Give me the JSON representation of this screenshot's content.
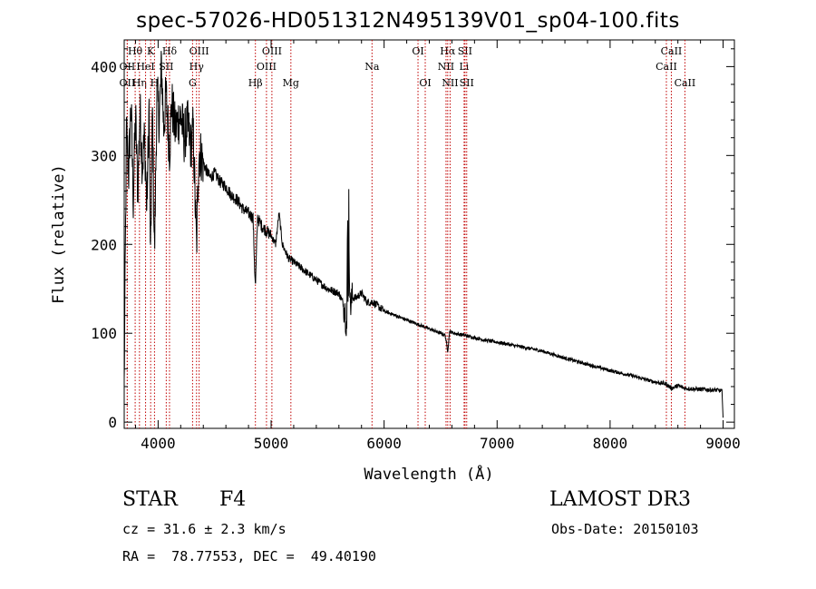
{
  "title": "spec-57026-HD051312N495139V01_sp04-100.fits",
  "chart_data": {
    "type": "line",
    "title": "spec-57026-HD051312N495139V01_sp04-100.fits",
    "xlabel": "Wavelength (Å)",
    "ylabel": "Flux (relative)",
    "xlim": [
      3700,
      9100
    ],
    "ylim": [
      -7,
      430
    ],
    "xticks": [
      4000,
      5000,
      6000,
      7000,
      8000,
      9000
    ],
    "yticks": [
      0,
      100,
      200,
      300,
      400
    ],
    "series": [
      {
        "name": "spectrum",
        "x": [
          3700,
          3720,
          3740,
          3760,
          3780,
          3800,
          3820,
          3840,
          3860,
          3880,
          3900,
          3920,
          3933,
          3950,
          3968,
          3990,
          4010,
          4030,
          4050,
          4070,
          4101,
          4120,
          4150,
          4180,
          4200,
          4230,
          4260,
          4290,
          4310,
          4340,
          4360,
          4380,
          4420,
          4460,
          4500,
          4550,
          4600,
          4650,
          4700,
          4750,
          4800,
          4840,
          4861,
          4880,
          4920,
          4960,
          5000,
          5040,
          5070,
          5100,
          5150,
          5200,
          5300,
          5400,
          5500,
          5600,
          5650,
          5670,
          5680,
          5700,
          5720,
          5750,
          5800,
          5850,
          5900,
          5950,
          6000,
          6100,
          6200,
          6300,
          6400,
          6500,
          6540,
          6563,
          6580,
          6620,
          6700,
          6800,
          6900,
          7000,
          7200,
          7400,
          7600,
          7800,
          8000,
          8200,
          8400,
          8498,
          8542,
          8600,
          8662,
          8800,
          8950,
          8990,
          9000
        ],
        "values": [
          40,
          330,
          280,
          360,
          250,
          345,
          260,
          350,
          290,
          320,
          240,
          355,
          175,
          350,
          190,
          370,
          340,
          400,
          330,
          370,
          305,
          360,
          330,
          340,
          345,
          320,
          335,
          310,
          330,
          195,
          305,
          300,
          285,
          275,
          280,
          270,
          265,
          255,
          250,
          240,
          235,
          230,
          150,
          230,
          220,
          215,
          210,
          200,
          235,
          200,
          185,
          180,
          170,
          160,
          150,
          145,
          130,
          108,
          275,
          130,
          140,
          140,
          145,
          135,
          135,
          130,
          125,
          120,
          115,
          110,
          105,
          100,
          98,
          80,
          102,
          100,
          98,
          95,
          92,
          90,
          85,
          80,
          72,
          65,
          58,
          52,
          45,
          43,
          38,
          41,
          38,
          37,
          36,
          35,
          5
        ]
      }
    ],
    "lines": [
      {
        "label": "Hθ",
        "x": 3797,
        "row": 0
      },
      {
        "label": "OII",
        "x": 3727,
        "row": 1
      },
      {
        "label": "OII",
        "x": 3727,
        "row": 2
      },
      {
        "label": "Hη",
        "x": 3835,
        "row": 2
      },
      {
        "label": "HeI",
        "x": 3889,
        "row": 1
      },
      {
        "label": "H",
        "x": 3968,
        "row": 2
      },
      {
        "label": "K",
        "x": 3934,
        "row": 0
      },
      {
        "label": "SII",
        "x": 4072,
        "row": 1
      },
      {
        "label": "Hδ",
        "x": 4101,
        "row": 0
      },
      {
        "label": "OIII",
        "x": 4363,
        "row": 0
      },
      {
        "label": "Hγ",
        "x": 4340,
        "row": 1
      },
      {
        "label": "G",
        "x": 4305,
        "row": 2
      },
      {
        "label": "Hβ",
        "x": 4861,
        "row": 2
      },
      {
        "label": "OIII",
        "x": 5007,
        "row": 0
      },
      {
        "label": "OIII",
        "x": 4959,
        "row": 1
      },
      {
        "label": "Mg",
        "x": 5175,
        "row": 2
      },
      {
        "label": "Na",
        "x": 5893,
        "row": 1
      },
      {
        "label": "OI",
        "x": 6300,
        "row": 0
      },
      {
        "label": "OI",
        "x": 6364,
        "row": 2
      },
      {
        "label": "Hα",
        "x": 6563,
        "row": 0
      },
      {
        "label": "NII",
        "x": 6548,
        "row": 1
      },
      {
        "label": "NII",
        "x": 6584,
        "row": 2
      },
      {
        "label": "SII",
        "x": 6716,
        "row": 0
      },
      {
        "label": "Li",
        "x": 6708,
        "row": 1
      },
      {
        "label": "SII",
        "x": 6731,
        "row": 2
      },
      {
        "label": "CaII",
        "x": 8542,
        "row": 0
      },
      {
        "label": "CaII",
        "x": 8498,
        "row": 1
      },
      {
        "label": "CaII",
        "x": 8662,
        "row": 2
      }
    ]
  },
  "info": {
    "object_class": "STAR",
    "subclass": "F4",
    "survey": "LAMOST DR3",
    "cz": "cz = 31.6 ± 2.3 km/s",
    "obs_date": "Obs-Date: 20150103",
    "coords": "RA =  78.77553, DEC =  49.40190"
  },
  "colors": {
    "axis": "#000000",
    "spectrum": "#000000",
    "line_marker": "#c00000"
  }
}
